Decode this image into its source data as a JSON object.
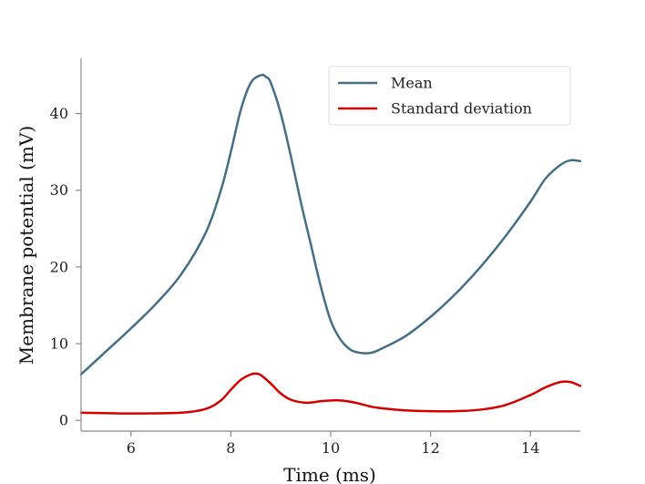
{
  "chart_data": {
    "type": "line",
    "title": "",
    "xlabel": "Time (ms)",
    "ylabel": "Membrane potential (mV)",
    "xlim": [
      5.0,
      15.0
    ],
    "ylim": [
      -1.4,
      47.2
    ],
    "xticks": [
      6,
      8,
      10,
      12,
      14
    ],
    "yticks": [
      0,
      10,
      20,
      30,
      40
    ],
    "grid": false,
    "legend_position": "top-right",
    "series": [
      {
        "name": "Mean",
        "color": "#456f87",
        "x": [
          5.0,
          5.5,
          6.0,
          6.5,
          7.0,
          7.5,
          7.8,
          8.0,
          8.2,
          8.4,
          8.6,
          8.7,
          8.8,
          9.0,
          9.2,
          9.4,
          9.6,
          9.8,
          10.0,
          10.2,
          10.4,
          10.6,
          10.8,
          11.0,
          11.5,
          12.0,
          12.5,
          13.0,
          13.5,
          14.0,
          14.3,
          14.6,
          14.8,
          15.0
        ],
        "y": [
          6.0,
          9.0,
          12.0,
          15.2,
          19.0,
          24.5,
          30.0,
          35.0,
          40.5,
          44.0,
          45.0,
          44.8,
          44.0,
          40.0,
          34.5,
          28.5,
          23.0,
          17.5,
          13.0,
          10.5,
          9.2,
          8.8,
          8.8,
          9.3,
          11.0,
          13.5,
          16.5,
          20.0,
          24.0,
          28.5,
          31.5,
          33.3,
          33.9,
          33.8
        ]
      },
      {
        "name": "Standard deviation",
        "color": "#d40000",
        "x": [
          5.0,
          6.0,
          7.0,
          7.5,
          7.8,
          8.0,
          8.2,
          8.4,
          8.5,
          8.6,
          8.8,
          9.0,
          9.2,
          9.5,
          9.8,
          10.0,
          10.2,
          10.5,
          10.8,
          11.0,
          11.5,
          12.0,
          12.5,
          13.0,
          13.5,
          14.0,
          14.3,
          14.6,
          14.8,
          15.0
        ],
        "y": [
          1.0,
          0.9,
          1.0,
          1.5,
          2.6,
          4.0,
          5.3,
          6.0,
          6.1,
          5.9,
          4.8,
          3.5,
          2.7,
          2.3,
          2.5,
          2.6,
          2.6,
          2.3,
          1.8,
          1.6,
          1.3,
          1.2,
          1.2,
          1.4,
          2.0,
          3.3,
          4.3,
          5.0,
          5.0,
          4.5
        ]
      }
    ]
  }
}
